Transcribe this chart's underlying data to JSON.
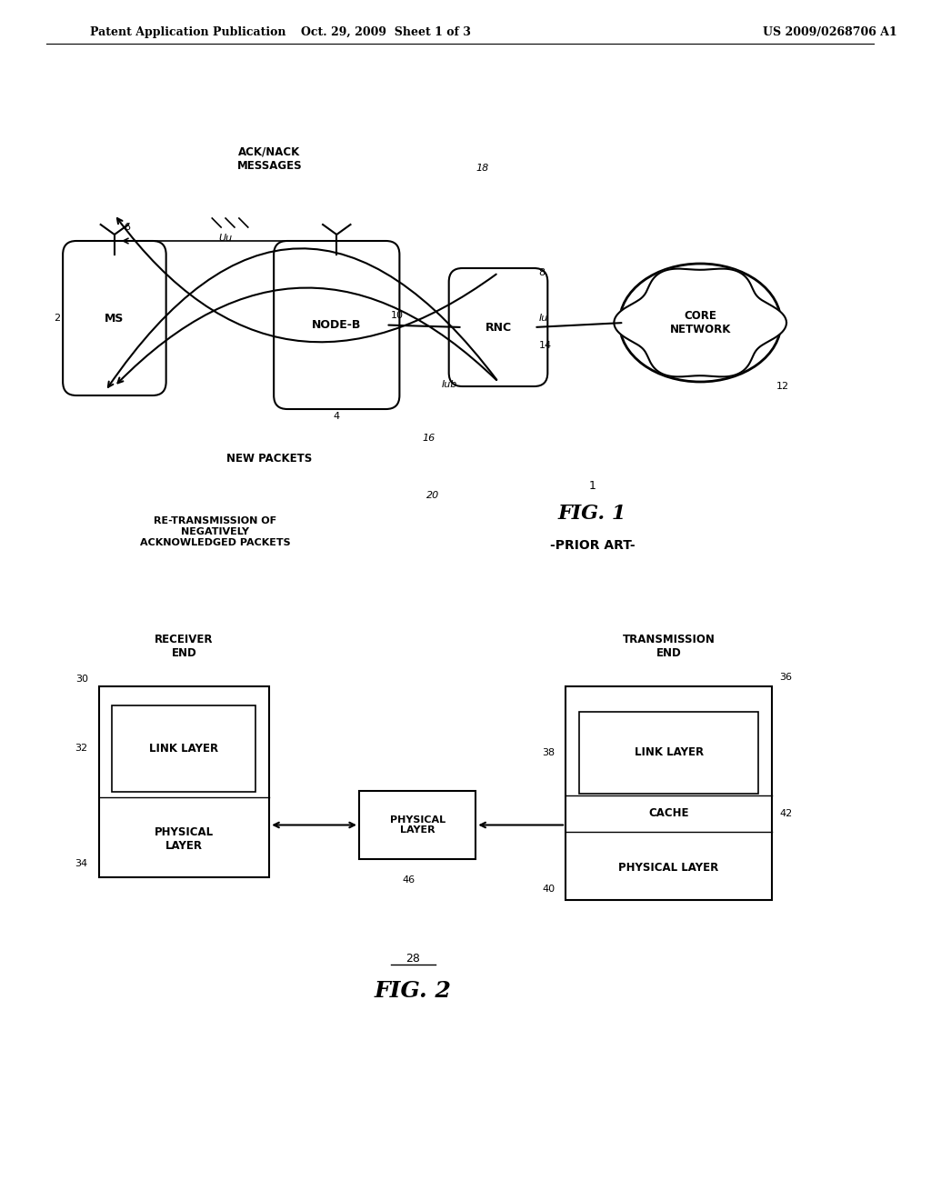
{
  "bg_color": "#ffffff",
  "header_left": "Patent Application Publication",
  "header_mid": "Oct. 29, 2009  Sheet 1 of 3",
  "header_right": "US 2009/0268706 A1",
  "fig1": {
    "title": "FIG. 1",
    "subtitle": "-PRIOR ART-",
    "ref": "1",
    "ms_label": "MS",
    "ms_ref": "2",
    "nodeb_label": "NODE-B",
    "nodeb_ref": "4",
    "rnc_label": "RNC",
    "rnc_ref": "8",
    "core_label": "CORE\nNETWORK",
    "core_ref": "12",
    "iub_label": "Iub",
    "iub_ref": "10",
    "iu_label": "Iu",
    "iu_ref": "14",
    "uu_label": "Uu",
    "uu_ref": "6",
    "ack_label": "ACK/NACK\nMESSAGES",
    "ack_ref": "18",
    "new_packets_label": "NEW PACKETS",
    "new_packets_ref": "16",
    "retrans_label": "RE-TRANSMISSION OF\nNEGATIVELY\nACKNOWLEDGED PACKETS",
    "retrans_ref": "20"
  },
  "fig2": {
    "title": "FIG. 2",
    "ref": "28",
    "receiver_label": "RECEIVER\nEND",
    "receiver_ref": "30",
    "trans_label": "TRANSMISSION\nEND",
    "trans_ref": "36",
    "link_layer_left": "LINK LAYER",
    "link_layer_left_ref": "32",
    "phys_layer_left": "PHYSICAL\nLAYER",
    "phys_layer_left_ref": "34",
    "link_layer_right": "LINK LAYER",
    "link_layer_right_ref": "38",
    "cache_label": "CACHE",
    "cache_ref": "42",
    "phys_layer_right": "PHYSICAL LAYER",
    "phys_layer_right_ref": "40",
    "phys_layer_mid": "PHYSICAL\nLAYER",
    "phys_layer_mid_ref": "46"
  }
}
